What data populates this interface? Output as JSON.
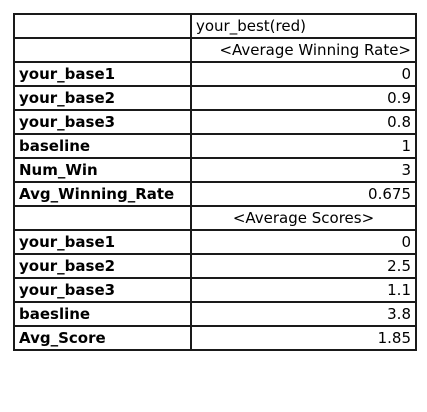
{
  "table": {
    "column_header": "your_best(red)",
    "section_winning_rate": "<Average Winning Rate>",
    "winning_rate_rows": [
      {
        "label": "your_base1",
        "value": "0"
      },
      {
        "label": "your_base2",
        "value": "0.9"
      },
      {
        "label": "your_base3",
        "value": "0.8"
      },
      {
        "label": "baseline",
        "value": "1"
      },
      {
        "label": "Num_Win",
        "value": "3"
      },
      {
        "label": "Avg_Winning_Rate",
        "value": "0.675"
      }
    ],
    "section_scores": "<Average Scores>",
    "score_rows": [
      {
        "label": "your_base1",
        "value": "0"
      },
      {
        "label": "your_base2",
        "value": "2.5"
      },
      {
        "label": "your_base3",
        "value": "1.1"
      },
      {
        "label": "baesline",
        "value": "3.8"
      },
      {
        "label": "Avg_Score",
        "value": "1.85"
      }
    ]
  }
}
